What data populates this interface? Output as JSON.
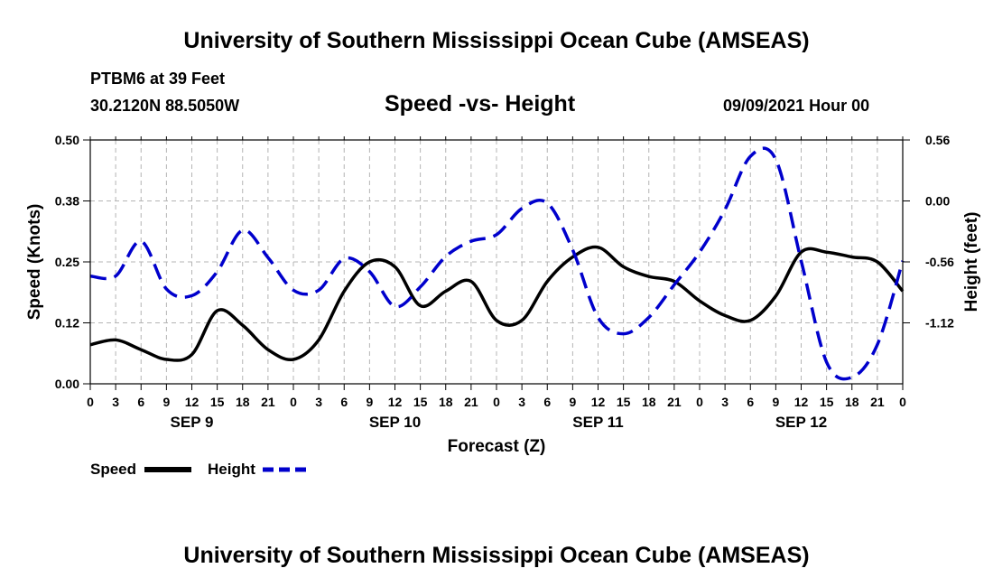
{
  "header": {
    "title_top": "University of Southern Mississippi Ocean Cube (AMSEAS)",
    "title_bottom": "University of Southern Mississippi Ocean Cube (AMSEAS)",
    "station": "PTBM6 at 39 Feet",
    "location": "30.2120N  88.5050W",
    "chart_title": "Speed -vs- Height",
    "datetime": "09/09/2021 Hour 00"
  },
  "colors": {
    "speed": "#000000",
    "height": "#0000cc",
    "grid": "#b4b4b4"
  },
  "chart_data": {
    "type": "line",
    "title": "Speed -vs- Height",
    "xlabel": "Forecast (Z)",
    "ylabel": "Speed (Knots)",
    "y2label": "Height (feet)",
    "ylim": [
      0,
      0.5
    ],
    "y2lim": [
      -1.68,
      0.56
    ],
    "yticks": [
      "0.00",
      "0.12",
      "0.25",
      "0.38",
      "0.50"
    ],
    "yticks_values": [
      0,
      0.125,
      0.25,
      0.375,
      0.5
    ],
    "y2ticks": [
      "0.56",
      "0.00",
      "-0.56",
      "-1.12"
    ],
    "y2ticks_values": [
      0.56,
      0,
      -0.56,
      -1.12
    ],
    "xlim": [
      0,
      96
    ],
    "xticks": [
      "0",
      "3",
      "6",
      "9",
      "12",
      "15",
      "18",
      "21",
      "0",
      "3",
      "6",
      "9",
      "12",
      "15",
      "18",
      "21",
      "0",
      "3",
      "6",
      "9",
      "12",
      "15",
      "18",
      "21",
      "0",
      "3",
      "6",
      "9",
      "12",
      "15",
      "18",
      "21",
      "0"
    ],
    "day_labels": [
      {
        "label": "SEP 9",
        "x": 12
      },
      {
        "label": "SEP 10",
        "x": 36
      },
      {
        "label": "SEP 11",
        "x": 60
      },
      {
        "label": "SEP 12",
        "x": 84
      }
    ],
    "x": [
      0,
      3,
      6,
      9,
      12,
      15,
      18,
      21,
      24,
      27,
      30,
      33,
      36,
      39,
      42,
      45,
      48,
      51,
      54,
      57,
      60,
      63,
      66,
      69,
      72,
      75,
      78,
      81,
      84,
      87,
      90,
      93,
      96
    ],
    "series": [
      {
        "name": "Speed",
        "axis": "left",
        "style": "solid",
        "values": [
          0.08,
          0.09,
          0.07,
          0.05,
          0.06,
          0.15,
          0.12,
          0.07,
          0.05,
          0.09,
          0.19,
          0.25,
          0.24,
          0.16,
          0.19,
          0.21,
          0.13,
          0.13,
          0.21,
          0.26,
          0.28,
          0.24,
          0.22,
          0.21,
          0.17,
          0.14,
          0.13,
          0.18,
          0.27,
          0.27,
          0.26,
          0.25,
          0.19
        ]
      },
      {
        "name": "Height",
        "axis": "right",
        "style": "dashed",
        "values": [
          -0.69,
          -0.69,
          -0.37,
          -0.81,
          -0.87,
          -0.65,
          -0.27,
          -0.52,
          -0.82,
          -0.82,
          -0.53,
          -0.65,
          -0.97,
          -0.79,
          -0.51,
          -0.37,
          -0.31,
          -0.07,
          -0.02,
          -0.45,
          -1.07,
          -1.22,
          -1.07,
          -0.77,
          -0.47,
          -0.08,
          0.41,
          0.38,
          -0.55,
          -1.48,
          -1.62,
          -1.32,
          -0.55
        ]
      }
    ],
    "legend": [
      {
        "label": "Speed",
        "color": "#000000",
        "style": "solid"
      },
      {
        "label": "Height",
        "color": "#0000cc",
        "style": "dashed"
      }
    ]
  }
}
